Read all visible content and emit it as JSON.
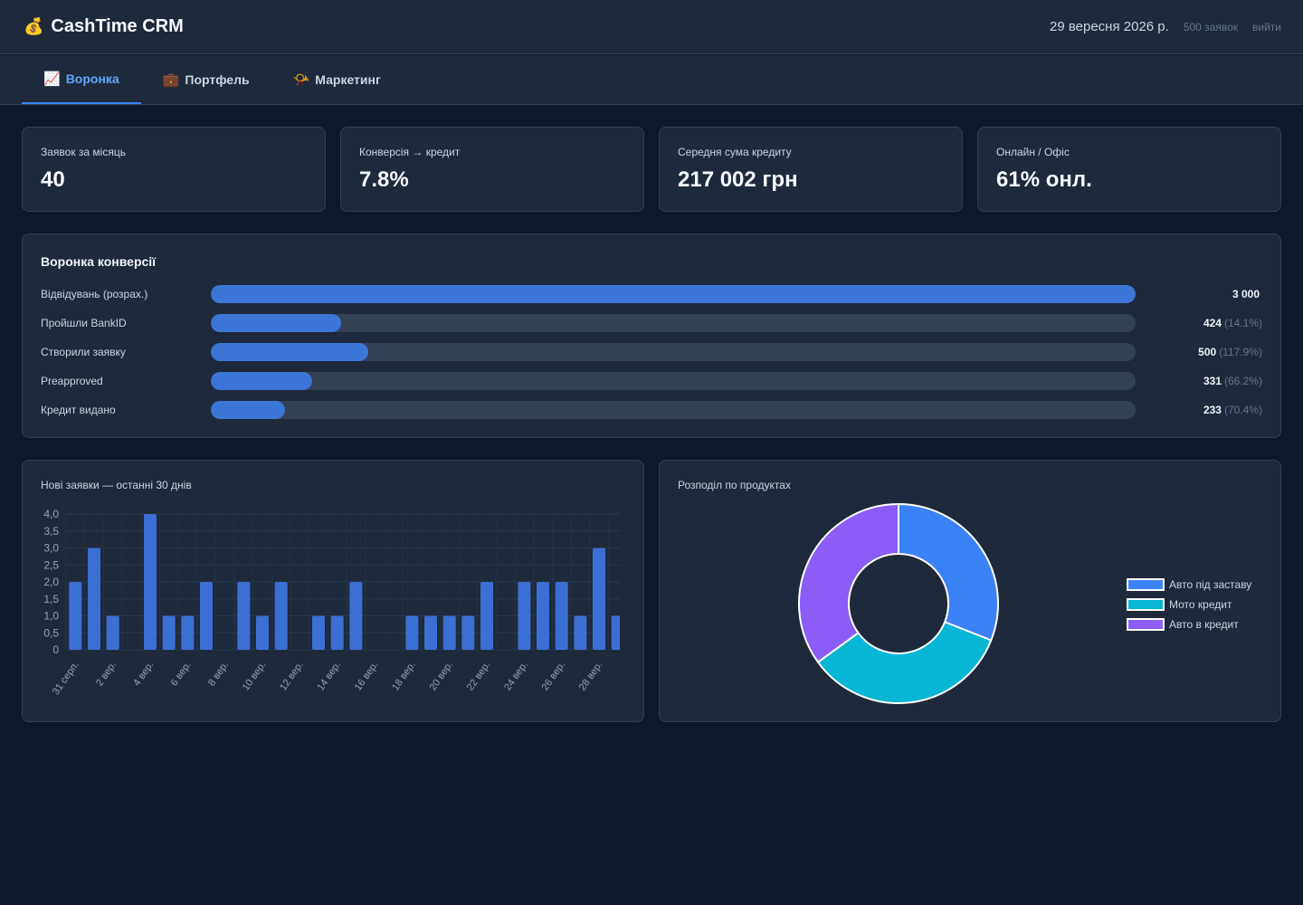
{
  "header": {
    "logo_icon": "money-bag-icon",
    "logo_glyph": "💰",
    "title": "CashTime CRM",
    "date": "29 вересня 2026 р.",
    "requests": "500 заявок",
    "logout": "вийти"
  },
  "tabs": [
    {
      "label": "Воронка",
      "icon": "chart-increasing-icon",
      "glyph": "📈",
      "active": true
    },
    {
      "label": "Портфель",
      "icon": "briefcase-icon",
      "glyph": "💼",
      "active": false
    },
    {
      "label": "Маркетинг",
      "icon": "megaphone-icon",
      "glyph": "📯",
      "active": false
    }
  ],
  "kpis": [
    {
      "label": "Заявок за місяць",
      "value": "40"
    },
    {
      "label": "Конверсія → кредит",
      "value": "7.8%"
    },
    {
      "label": "Середня сума кредиту",
      "value": "217 002 грн"
    },
    {
      "label": "Онлайн / Офіс",
      "value": "61% онл."
    }
  ],
  "funnel": {
    "title": "Воронка конверсії",
    "rows": [
      {
        "label": "Відвідувань (розрах.)",
        "value": "3 000",
        "pct": "",
        "fill": 1.0
      },
      {
        "label": "Пройшли BankID",
        "value": "424",
        "pct": "(14.1%)",
        "fill": 0.141
      },
      {
        "label": "Створили заявку",
        "value": "500",
        "pct": "(117.9%)",
        "fill": 0.17
      },
      {
        "label": "Preapproved",
        "value": "331",
        "pct": "(66.2%)",
        "fill": 0.11
      },
      {
        "label": "Кредит видано",
        "value": "233",
        "pct": "(70.4%)",
        "fill": 0.08
      }
    ]
  },
  "chart_data": [
    {
      "type": "bar",
      "title": "Нові заявки — останні 30 днів",
      "categories": [
        "31 серп.",
        "1 вер.",
        "2 вер.",
        "3 вер.",
        "4 вер.",
        "5 вер.",
        "6 вер.",
        "7 вер.",
        "8 вер.",
        "9 вер.",
        "10 вер.",
        "11 вер.",
        "12 вер.",
        "13 вер.",
        "14 вер.",
        "15 вер.",
        "16 вер.",
        "17 вер.",
        "18 вер.",
        "19 вер.",
        "20 вер.",
        "21 вер.",
        "22 вер.",
        "23 вер.",
        "24 вер.",
        "25 вер.",
        "26 вер.",
        "27 вер.",
        "28 вер.",
        "29 вер."
      ],
      "tick_labels": [
        "31 серп.",
        "2 вер.",
        "4 вер.",
        "6 вер.",
        "8 вер.",
        "10 вер.",
        "12 вер.",
        "14 вер.",
        "16 вер.",
        "18 вер.",
        "20 вер.",
        "22 вер.",
        "24 вер.",
        "26 вер.",
        "28 вер."
      ],
      "values": [
        2,
        3,
        1,
        0,
        4,
        1,
        1,
        2,
        0,
        2,
        1,
        2,
        0,
        1,
        1,
        2,
        0,
        0,
        1,
        1,
        1,
        1,
        2,
        0,
        2,
        2,
        2,
        1,
        3,
        1
      ],
      "y_ticks": [
        "0",
        "0,5",
        "1,0",
        "1,5",
        "2,0",
        "2,5",
        "3,0",
        "3,5",
        "4,0"
      ],
      "ylim": [
        0,
        4
      ],
      "grid": true,
      "color": "#3b6fd4"
    },
    {
      "type": "pie",
      "title": "Розподіл по продуктах",
      "donut": true,
      "labels": [
        "Авто під заставу",
        "Мото кредит",
        "Авто в кредит"
      ],
      "values": [
        31,
        34,
        35
      ],
      "colors": [
        "#3b82f6",
        "#06b6d4",
        "#8b5cf6"
      ],
      "legend": "right"
    }
  ]
}
